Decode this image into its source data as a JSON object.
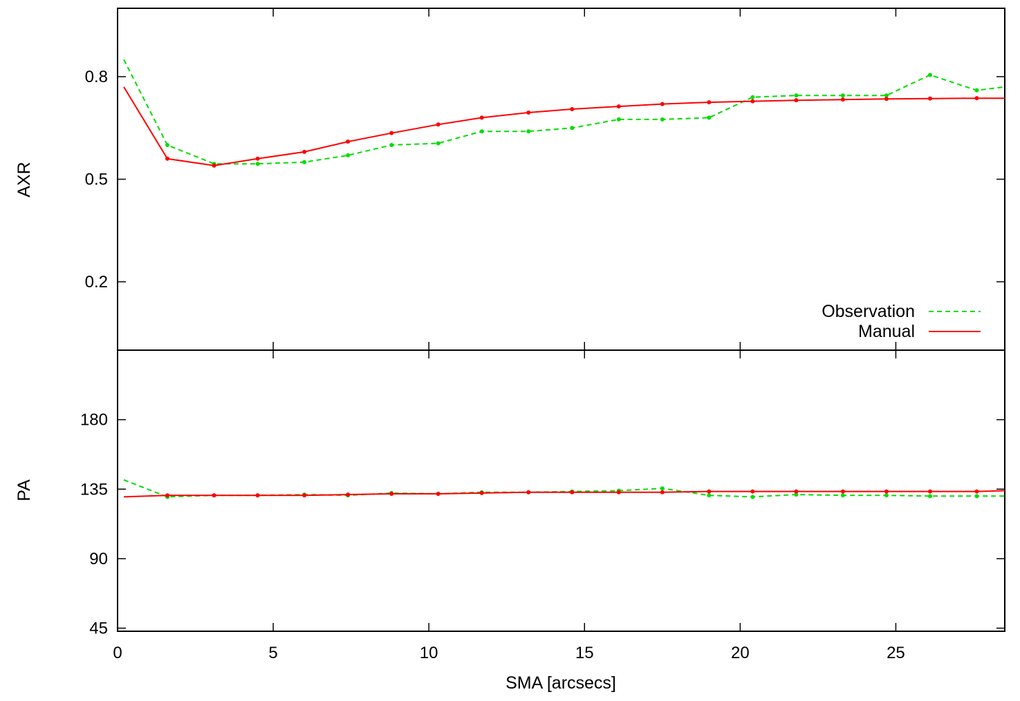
{
  "chart_data": [
    {
      "type": "line",
      "ylabel": "AXR",
      "ylim": [
        0.0,
        1.0
      ],
      "yticks": [
        0.2,
        0.5,
        0.8
      ],
      "xlim": [
        0,
        28.5
      ],
      "legend_position": "bottom-right",
      "series": [
        {
          "name": "Observation",
          "style": "dashed",
          "color": "#00dd00",
          "points": [
            [
              0.2,
              0.85
            ],
            [
              1.6,
              0.6
            ],
            [
              3.1,
              0.545
            ],
            [
              4.5,
              0.545
            ],
            [
              6.0,
              0.55
            ],
            [
              7.4,
              0.57
            ],
            [
              8.8,
              0.6
            ],
            [
              10.3,
              0.605
            ],
            [
              11.7,
              0.64
            ],
            [
              13.2,
              0.64
            ],
            [
              14.6,
              0.65
            ],
            [
              16.1,
              0.675
            ],
            [
              17.5,
              0.675
            ],
            [
              19.0,
              0.68
            ],
            [
              20.4,
              0.74
            ],
            [
              21.8,
              0.745
            ],
            [
              23.3,
              0.745
            ],
            [
              24.7,
              0.745
            ],
            [
              26.1,
              0.805
            ],
            [
              27.6,
              0.76
            ],
            [
              28.5,
              0.77
            ]
          ]
        },
        {
          "name": "Manual",
          "style": "solid",
          "color": "#ff0000",
          "points": [
            [
              0.2,
              0.77
            ],
            [
              1.6,
              0.56
            ],
            [
              3.1,
              0.54
            ],
            [
              4.5,
              0.56
            ],
            [
              6.0,
              0.58
            ],
            [
              7.4,
              0.61
            ],
            [
              8.8,
              0.635
            ],
            [
              10.3,
              0.66
            ],
            [
              11.7,
              0.68
            ],
            [
              13.2,
              0.695
            ],
            [
              14.6,
              0.705
            ],
            [
              16.1,
              0.713
            ],
            [
              17.5,
              0.72
            ],
            [
              19.0,
              0.725
            ],
            [
              20.4,
              0.728
            ],
            [
              21.8,
              0.731
            ],
            [
              23.3,
              0.733
            ],
            [
              24.7,
              0.735
            ],
            [
              26.1,
              0.736
            ],
            [
              27.6,
              0.737
            ],
            [
              28.5,
              0.737
            ]
          ]
        }
      ]
    },
    {
      "type": "line",
      "ylabel": "PA",
      "xlabel": "SMA [arcsecs]",
      "ylim": [
        43,
        225
      ],
      "yticks": [
        45,
        90,
        135,
        180
      ],
      "xlim": [
        0,
        28.5
      ],
      "xticks": [
        0,
        5,
        10,
        15,
        20,
        25
      ],
      "series": [
        {
          "name": "Observation",
          "style": "dashed",
          "color": "#00dd00",
          "points": [
            [
              0.2,
              141
            ],
            [
              1.6,
              130
            ],
            [
              3.1,
              131
            ],
            [
              4.5,
              131
            ],
            [
              6.0,
              131.5
            ],
            [
              7.4,
              131
            ],
            [
              8.8,
              132.5
            ],
            [
              10.3,
              132
            ],
            [
              11.7,
              133
            ],
            [
              13.2,
              133
            ],
            [
              14.6,
              133.5
            ],
            [
              16.1,
              134
            ],
            [
              17.5,
              135.5
            ],
            [
              19.0,
              131
            ],
            [
              20.4,
              130
            ],
            [
              21.8,
              131.5
            ],
            [
              23.3,
              131
            ],
            [
              24.7,
              131
            ],
            [
              26.1,
              130.5
            ],
            [
              27.6,
              130.5
            ],
            [
              28.5,
              130.5
            ]
          ]
        },
        {
          "name": "Manual",
          "style": "solid",
          "color": "#ff0000",
          "points": [
            [
              0.2,
              130
            ],
            [
              1.6,
              131
            ],
            [
              3.1,
              131
            ],
            [
              4.5,
              131
            ],
            [
              6.0,
              131
            ],
            [
              7.4,
              131.5
            ],
            [
              8.8,
              132
            ],
            [
              10.3,
              132
            ],
            [
              11.7,
              132.5
            ],
            [
              13.2,
              133
            ],
            [
              14.6,
              133
            ],
            [
              16.1,
              133
            ],
            [
              17.5,
              133
            ],
            [
              19.0,
              133.5
            ],
            [
              20.4,
              133.5
            ],
            [
              21.8,
              133.5
            ],
            [
              23.3,
              133.5
            ],
            [
              24.7,
              133.5
            ],
            [
              26.1,
              133.5
            ],
            [
              27.6,
              133.5
            ],
            [
              28.5,
              134
            ]
          ]
        }
      ]
    }
  ]
}
